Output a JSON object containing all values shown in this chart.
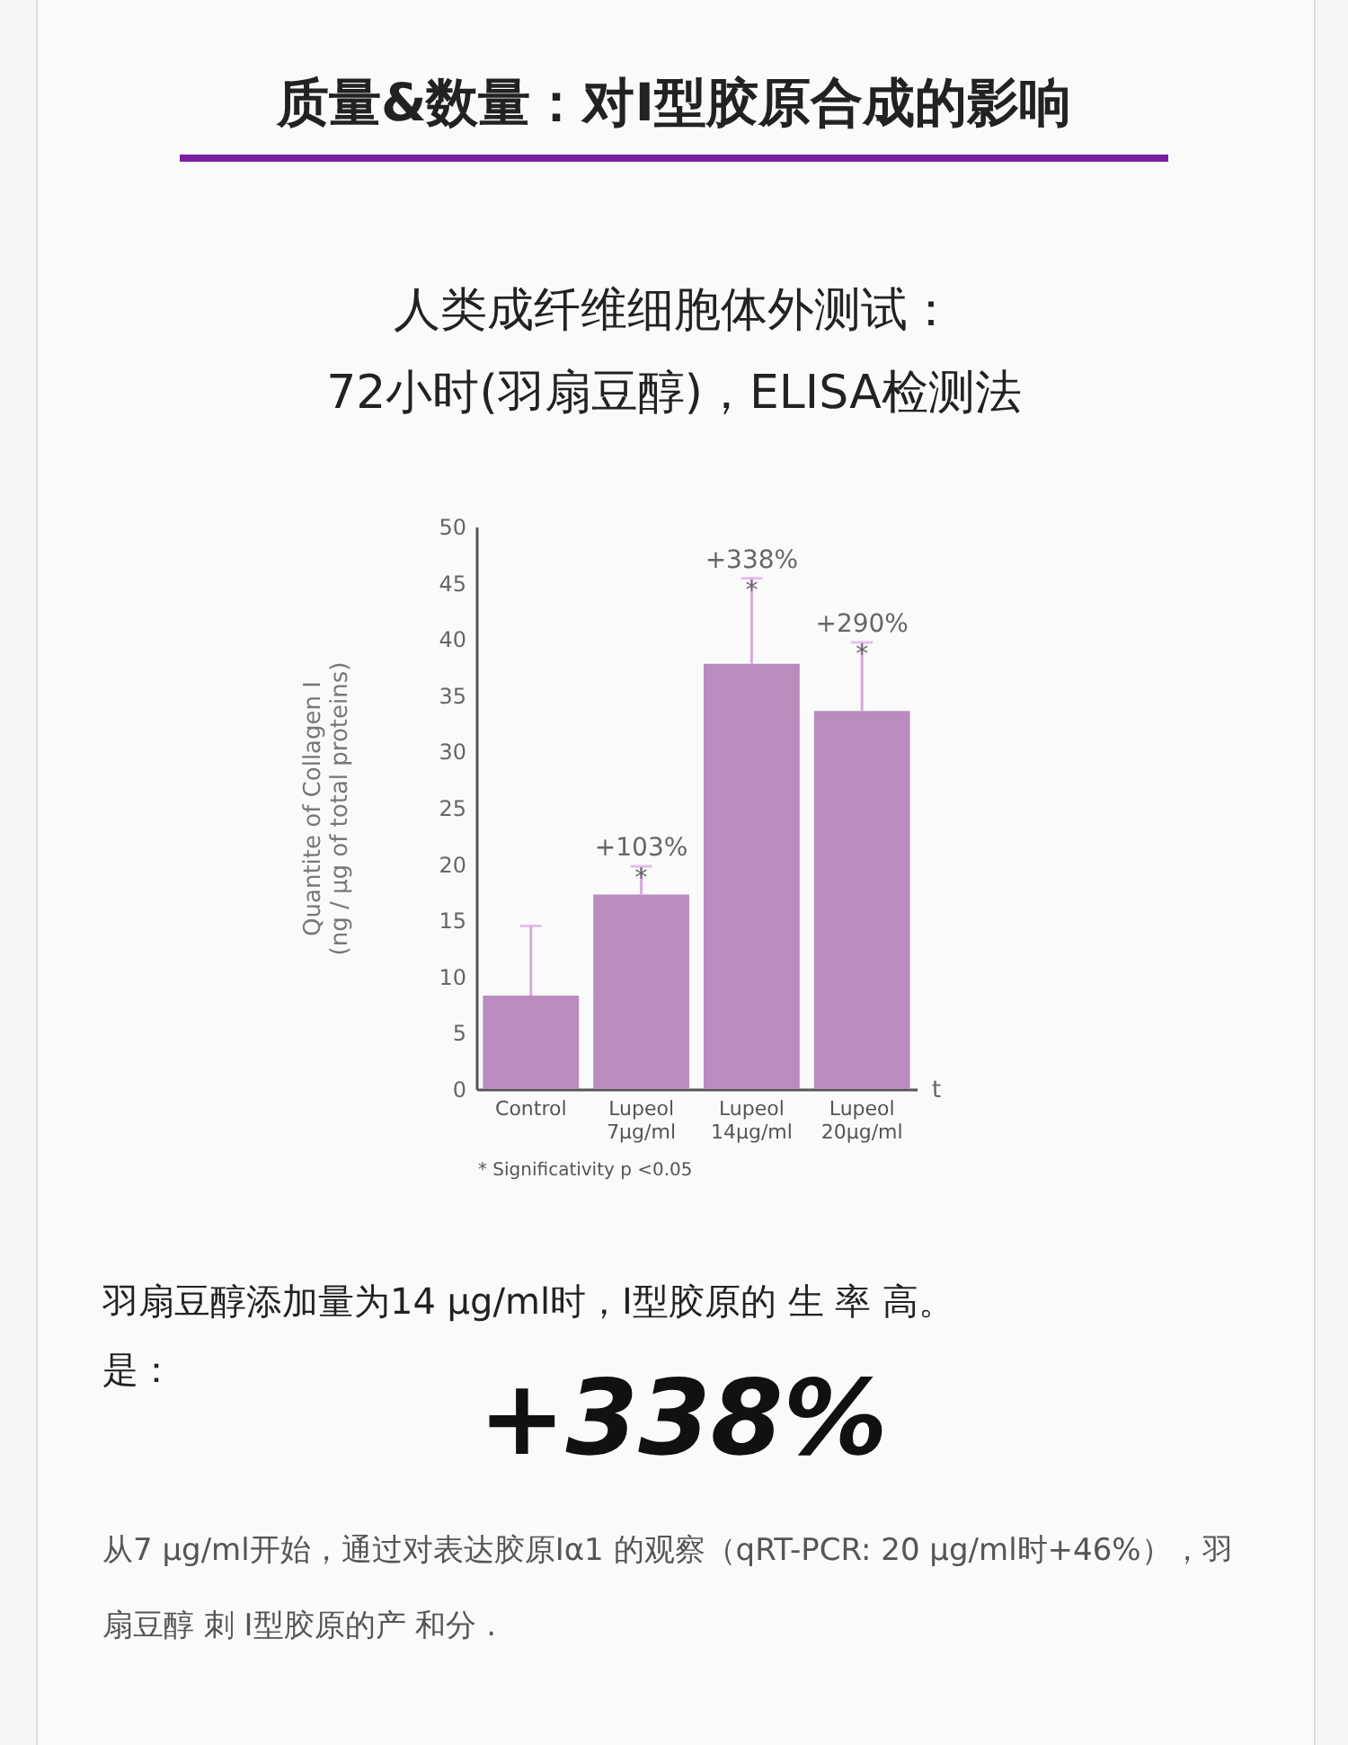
{
  "chart_data": {
    "type": "bar",
    "title": "质量&数量：对I型胶原合成的影响",
    "subtitle": "人类成纤维细胞体外测试：\n72小时(羽扇豆醇)，ELISA检测法",
    "xlabel": "t",
    "ylabel": "Quantite of Collagen I\n(ng / μg of total proteins)",
    "categories": [
      "Control",
      "Lupeol\n7μg/ml",
      "Lupeol\n14μg/ml",
      "Lupeol\n20μg/ml"
    ],
    "values": [
      8.3,
      17.3,
      37.8,
      33.6
    ],
    "color": "#bb8bbf",
    "errors": [
      [
        8.3,
        14.5
      ],
      [
        17.3,
        19.8
      ],
      [
        37.8,
        45.4
      ],
      [
        33.6,
        39.7
      ]
    ],
    "ylim": [
      0,
      50
    ],
    "yticks": [
      0,
      5,
      10,
      15,
      20,
      25,
      30,
      35,
      40,
      45,
      50
    ],
    "grid": false,
    "annotations": [
      {
        "text": "+103%\n*",
        "x": "Lupeol\n7μg/ml",
        "y": 19.8
      },
      {
        "text": "+338%\n*",
        "x": "Lupeol\n14μg/ml",
        "y": 45.4
      },
      {
        "text": "+290%\n*",
        "x": "Lupeol\n20μg/ml",
        "y": 39.7
      },
      "*  Significativity p <0.05",
      "羽扇豆醇添加量为14 μg/ml时，I型胶原的 生 率 高。",
      "是：",
      "+338%",
      "从7 μg/ml开始，通过对表达胶原Iα1 的观察（qRT-PCR: 20 μg/ml时+46%），羽扇豆醇 刺 I型胶原的产 和分 ."
    ]
  }
}
